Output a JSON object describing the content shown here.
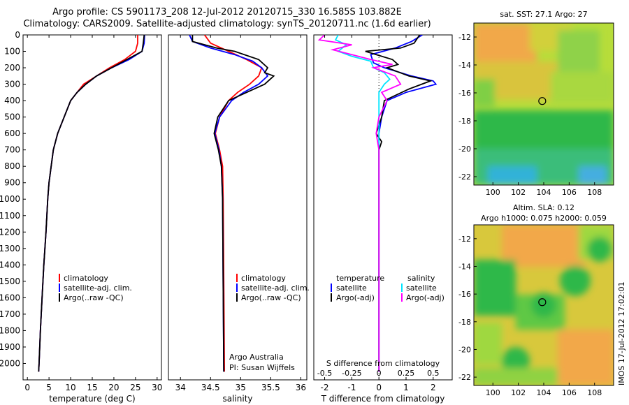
{
  "header": {
    "line1": "Argo profile: CS 5901173_208 12-Jul-2012 20120715_330 16.585S 103.882E",
    "line2": "Climatology: CARS2009. Satellite-adjusted climatology: synTS_20120711.nc (1.6d earlier)"
  },
  "colors": {
    "climatology": "#ff0000",
    "satellite": "#0000ff",
    "argo": "#000000",
    "sal_satellite": "#00e5ff",
    "sal_argo": "#ff00ff"
  },
  "chart_data": [
    {
      "type": "line",
      "id": "temperature",
      "xlabel": "temperature (deg C)",
      "ylabel": "",
      "xlim": [
        -1,
        31
      ],
      "ylim": [
        0,
        2100
      ],
      "xticks": [
        0,
        5,
        10,
        15,
        20,
        25,
        30
      ],
      "yticks": [
        0,
        100,
        200,
        300,
        400,
        500,
        600,
        700,
        800,
        900,
        1000,
        1100,
        1200,
        1300,
        1400,
        1500,
        1600,
        1700,
        1800,
        1900,
        2000
      ],
      "legend": [
        "climatology",
        "satellite-adj. clim.",
        "Argo(..raw -QC)"
      ],
      "series": [
        {
          "key": "climatology",
          "color": "#ff0000",
          "points": [
            [
              25.5,
              0
            ],
            [
              25.5,
              50
            ],
            [
              25.0,
              100
            ],
            [
              22.5,
              150
            ],
            [
              19,
              200
            ],
            [
              16,
              250
            ],
            [
              13,
              300
            ],
            [
              11.5,
              350
            ],
            [
              10,
              400
            ],
            [
              8.5,
              500
            ],
            [
              7,
              600
            ],
            [
              6,
              700
            ],
            [
              5.5,
              800
            ],
            [
              5,
              900
            ],
            [
              4.7,
              1000
            ],
            [
              4.3,
              1200
            ],
            [
              3.8,
              1400
            ],
            [
              3.4,
              1600
            ],
            [
              3.0,
              1800
            ],
            [
              2.7,
              2000
            ],
            [
              2.6,
              2050
            ]
          ]
        },
        {
          "key": "satellite",
          "color": "#0000ff",
          "points": [
            [
              27.1,
              0
            ],
            [
              27,
              50
            ],
            [
              26.5,
              100
            ],
            [
              23.5,
              150
            ],
            [
              19.5,
              200
            ],
            [
              16,
              250
            ],
            [
              13.5,
              300
            ],
            [
              11.5,
              350
            ],
            [
              10,
              400
            ],
            [
              8.5,
              500
            ],
            [
              7,
              600
            ],
            [
              6,
              700
            ],
            [
              5.5,
              800
            ],
            [
              5,
              900
            ],
            [
              4.7,
              1000
            ],
            [
              4.3,
              1200
            ],
            [
              3.8,
              1400
            ],
            [
              3.4,
              1600
            ],
            [
              3.0,
              1800
            ],
            [
              2.7,
              2000
            ],
            [
              2.6,
              2050
            ]
          ]
        },
        {
          "key": "argo",
          "color": "#000000",
          "points": [
            [
              27,
              0
            ],
            [
              26.8,
              50
            ],
            [
              26.5,
              100
            ],
            [
              23,
              150
            ],
            [
              19.5,
              200
            ],
            [
              16,
              250
            ],
            [
              13.5,
              300
            ],
            [
              11.5,
              350
            ],
            [
              10,
              400
            ],
            [
              8.5,
              500
            ],
            [
              7,
              600
            ],
            [
              6,
              700
            ],
            [
              5.5,
              800
            ],
            [
              5,
              900
            ],
            [
              4.7,
              1000
            ],
            [
              4.3,
              1200
            ],
            [
              3.8,
              1400
            ],
            [
              3.4,
              1600
            ],
            [
              3.0,
              1800
            ],
            [
              2.7,
              2000
            ],
            [
              2.6,
              2050
            ]
          ]
        }
      ]
    },
    {
      "type": "line",
      "id": "salinity",
      "xlabel": "salinity",
      "xlim": [
        33.8,
        36.1
      ],
      "ylim": [
        0,
        2100
      ],
      "xticks": [
        34,
        34.5,
        35,
        35.5,
        36
      ],
      "legend": [
        "climatology",
        "satellite-adj. clim.",
        "Argo(..raw -QC)"
      ],
      "annotations": [
        "Argo Australia",
        "PI: Susan Wijffels"
      ],
      "series": [
        {
          "key": "climatology",
          "color": "#ff0000",
          "points": [
            [
              34.4,
              0
            ],
            [
              34.5,
              50
            ],
            [
              34.8,
              100
            ],
            [
              35.1,
              150
            ],
            [
              35.35,
              200
            ],
            [
              35.3,
              250
            ],
            [
              35.15,
              300
            ],
            [
              34.95,
              350
            ],
            [
              34.8,
              400
            ],
            [
              34.65,
              500
            ],
            [
              34.58,
              600
            ],
            [
              34.65,
              700
            ],
            [
              34.7,
              800
            ],
            [
              34.71,
              1000
            ],
            [
              34.72,
              1500
            ],
            [
              34.73,
              2050
            ]
          ]
        },
        {
          "key": "satellite",
          "color": "#0000ff",
          "points": [
            [
              34.15,
              0
            ],
            [
              34.2,
              40
            ],
            [
              34.5,
              80
            ],
            [
              34.9,
              120
            ],
            [
              35.2,
              160
            ],
            [
              35.35,
              200
            ],
            [
              35.45,
              250
            ],
            [
              35.3,
              300
            ],
            [
              35.05,
              350
            ],
            [
              34.85,
              400
            ],
            [
              34.65,
              500
            ],
            [
              34.57,
              600
            ],
            [
              34.64,
              700
            ],
            [
              34.68,
              800
            ],
            [
              34.7,
              1000
            ],
            [
              34.71,
              1500
            ],
            [
              34.72,
              2050
            ]
          ]
        },
        {
          "key": "argo",
          "color": "#000000",
          "points": [
            [
              34.2,
              0
            ],
            [
              34.2,
              40
            ],
            [
              34.6,
              80
            ],
            [
              34.9,
              100
            ],
            [
              35.3,
              150
            ],
            [
              35.45,
              200
            ],
            [
              35.4,
              230
            ],
            [
              35.55,
              250
            ],
            [
              35.4,
              300
            ],
            [
              35.1,
              350
            ],
            [
              34.8,
              400
            ],
            [
              34.62,
              500
            ],
            [
              34.56,
              600
            ],
            [
              34.63,
              700
            ],
            [
              34.68,
              800
            ],
            [
              34.7,
              1000
            ],
            [
              34.71,
              1500
            ],
            [
              34.72,
              2050
            ]
          ]
        }
      ]
    },
    {
      "type": "line",
      "id": "difference",
      "xlabel": "T difference from climatology",
      "xlabel_top": "S difference from climatology",
      "xlim": [
        -2.4,
        2.7
      ],
      "ylim": [
        0,
        2100
      ],
      "xticks": [
        -2,
        -1,
        0,
        1,
        2
      ],
      "s_tick_labels": [
        "-0.5",
        "-0.25",
        "0",
        "0.25",
        "0.5"
      ],
      "s_tick_positions": [
        -2,
        -1,
        0,
        1,
        2
      ],
      "legend_titles": [
        "temperature",
        "salinity"
      ],
      "legend_temperature": [
        "satellite",
        "Argo(-adj)"
      ],
      "legend_salinity": [
        "satellite",
        "Argo(-adj)"
      ],
      "series": [
        {
          "key": "temp_satellite",
          "color": "#0000ff",
          "points": [
            [
              1.6,
              0
            ],
            [
              1.2,
              40
            ],
            [
              0.6,
              80
            ],
            [
              -0.3,
              120
            ],
            [
              -0.2,
              170
            ],
            [
              0.2,
              200
            ],
            [
              1.2,
              250
            ],
            [
              2.0,
              280
            ],
            [
              2.1,
              300
            ],
            [
              1.0,
              350
            ],
            [
              0.3,
              400
            ],
            [
              0.1,
              500
            ],
            [
              0,
              600
            ],
            [
              0,
              700
            ],
            [
              0,
              1000
            ],
            [
              0,
              1500
            ],
            [
              0,
              2050
            ]
          ]
        },
        {
          "key": "temp_argo",
          "color": "#000000",
          "points": [
            [
              1.5,
              0
            ],
            [
              1.3,
              50
            ],
            [
              0.8,
              80
            ],
            [
              -0.5,
              100
            ],
            [
              0.5,
              150
            ],
            [
              0.7,
              180
            ],
            [
              0.3,
              200
            ],
            [
              1.1,
              250
            ],
            [
              1.9,
              280
            ],
            [
              1.1,
              330
            ],
            [
              0.2,
              400
            ],
            [
              0.1,
              500
            ],
            [
              -0.1,
              600
            ],
            [
              0.1,
              650
            ],
            [
              0,
              700
            ],
            [
              0,
              1000
            ],
            [
              0,
              1500
            ],
            [
              0,
              2050
            ]
          ]
        },
        {
          "key": "sal_satellite",
          "color": "#00e5ff",
          "points": [
            [
              -1.5,
              0
            ],
            [
              -1.6,
              30
            ],
            [
              -1.2,
              60
            ],
            [
              -1.5,
              100
            ],
            [
              -1.0,
              130
            ],
            [
              -0.3,
              160
            ],
            [
              -0.2,
              200
            ],
            [
              0.2,
              230
            ],
            [
              0.4,
              270
            ],
            [
              0.2,
              300
            ],
            [
              0,
              350
            ],
            [
              0,
              400
            ],
            [
              0,
              500
            ],
            [
              0,
              700
            ],
            [
              0,
              1000
            ],
            [
              0,
              2050
            ]
          ]
        },
        {
          "key": "sal_argo",
          "color": "#ff00ff",
          "points": [
            [
              -2.0,
              0
            ],
            [
              -2.2,
              30
            ],
            [
              -1.0,
              60
            ],
            [
              -1.7,
              90
            ],
            [
              -1.0,
              120
            ],
            [
              -0.3,
              150
            ],
            [
              0.5,
              180
            ],
            [
              -0.2,
              200
            ],
            [
              0.6,
              250
            ],
            [
              0.8,
              300
            ],
            [
              0.1,
              350
            ],
            [
              0.3,
              400
            ],
            [
              0,
              500
            ],
            [
              -0.1,
              600
            ],
            [
              0,
              700
            ],
            [
              0,
              1000
            ],
            [
              0,
              2050
            ]
          ]
        }
      ]
    },
    {
      "type": "heatmap",
      "id": "sst_map",
      "title": "sat. SST: 27.1  Argo: 27",
      "xlim": [
        98.5,
        109.5
      ],
      "ylim": [
        -22.6,
        -11
      ],
      "xticks": [
        100,
        102,
        104,
        106,
        108
      ],
      "yticks": [
        -12,
        -14,
        -16,
        -18,
        -20,
        -22
      ],
      "marker": [
        103.882,
        -16.585
      ]
    },
    {
      "type": "heatmap",
      "id": "sla_map",
      "title": "Altim. SLA: 0.12",
      "subtitle": "Argo h1000: 0.075  h2000: 0.059",
      "xlim": [
        98.5,
        109.5
      ],
      "ylim": [
        -22.6,
        -11
      ],
      "xticks": [
        100,
        102,
        104,
        106,
        108
      ],
      "yticks": [
        -12,
        -14,
        -16,
        -18,
        -20,
        -22
      ],
      "marker": [
        103.882,
        -16.585
      ]
    }
  ],
  "stamp": "IMOS 17-Jul-2012 17:02:01"
}
